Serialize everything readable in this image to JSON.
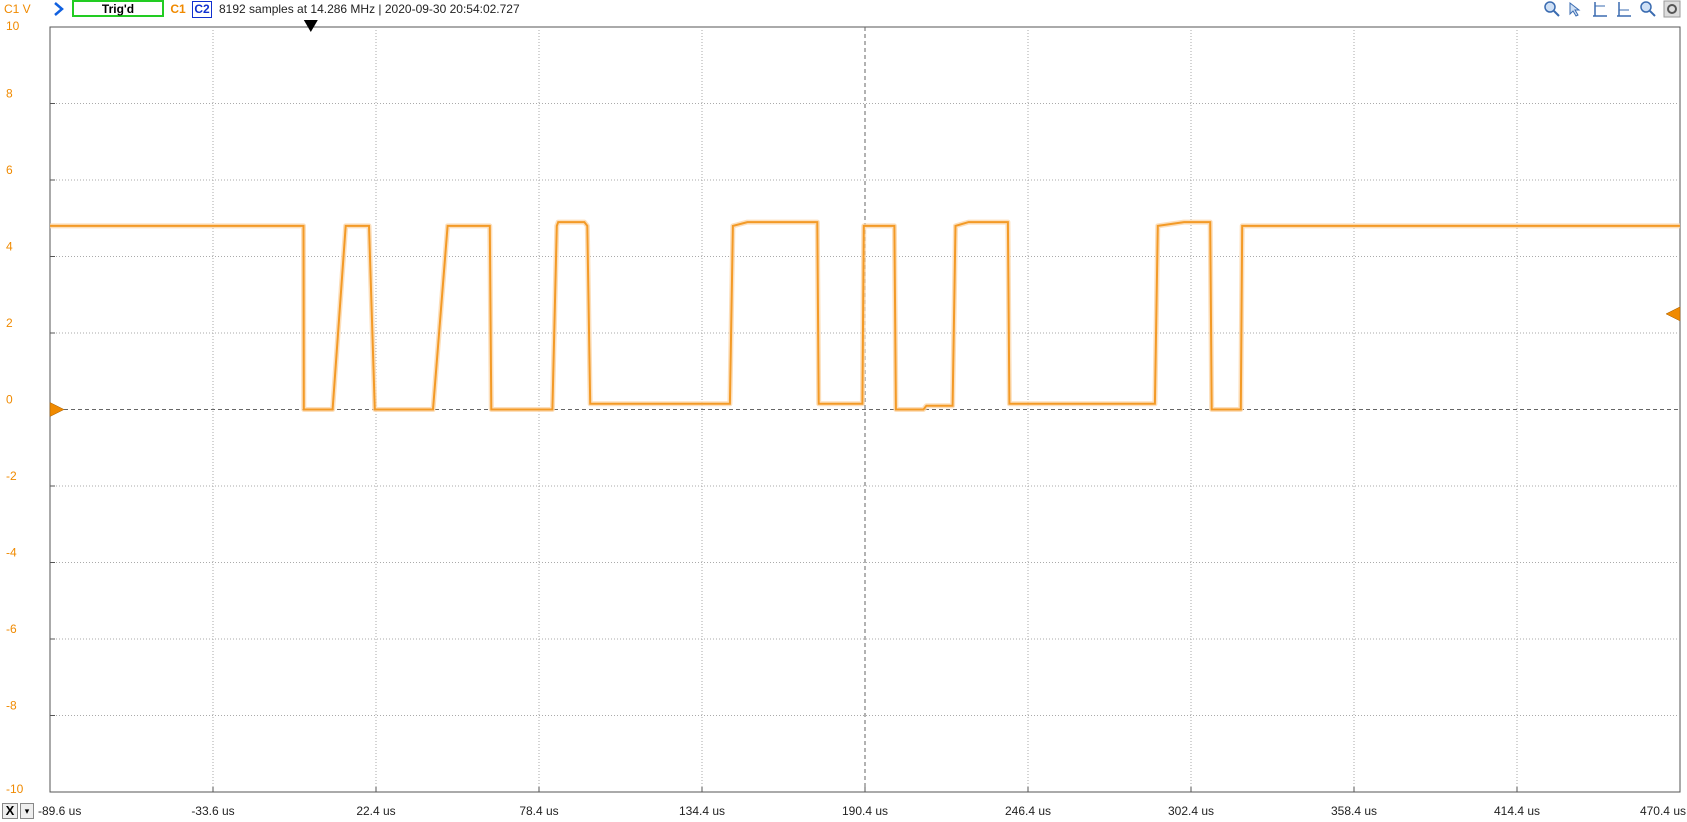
{
  "toolbar": {
    "channel_scale_label": "C1 V",
    "trigger_status": "Trig'd",
    "channel1": "C1",
    "channel2": "C2",
    "acquisition_info": "8192 samples at 14.286 MHz | 2020-09-30 20:54:02.727",
    "tools": [
      "zoom-in-icon",
      "cursor-icon",
      "marker-icon",
      "marker-icon",
      "zoom-out-icon",
      "settings-icon"
    ]
  },
  "bottom": {
    "x_button": "X",
    "dropdown": "▾"
  },
  "colors": {
    "trace": "#f39a26",
    "trace_shadow": "#fbd7ab",
    "accent_c1": "#f08a00",
    "accent_c2": "#1030d0",
    "trig_border": "#22cc22"
  },
  "chart_data": {
    "type": "line",
    "xlabel_unit": "us",
    "ylabel": "C1 V",
    "xlim": [
      -89.6,
      470.4
    ],
    "ylim": [
      -10,
      10
    ],
    "x_ticks": [
      "-89.6 us",
      "-33.6 us",
      "22.4 us",
      "78.4 us",
      "134.4 us",
      "190.4 us",
      "246.4 us",
      "302.4 us",
      "358.4 us",
      "414.4 us",
      "470.4 us"
    ],
    "y_ticks": [
      "10",
      "8",
      "6",
      "4",
      "2",
      "0",
      "-2",
      "-4",
      "-6",
      "-8",
      "-10"
    ],
    "grid": true,
    "series": [
      {
        "x": [
          -89.6,
          -2.5,
          -2.4,
          7.5,
          12.0,
          18.0,
          20.0,
          22.0,
          42.0,
          47.0,
          51.0,
          52.0,
          61.5,
          62.0,
          83.0,
          84.5,
          85.0,
          94.0,
          95.0,
          96.0,
          144.0,
          145.0,
          150.0,
          151.0,
          174.0,
          174.5,
          189.5,
          190.0,
          200.5,
          201.0,
          210.5,
          211.5,
          220.5,
          221.5,
          226.0,
          239.5,
          240.0,
          290.0,
          291.0,
          300.0,
          301.0,
          301.5,
          309.0,
          309.5,
          319.5,
          320.0,
          470.4
        ],
        "y": [
          4.8,
          4.8,
          0.0,
          0.0,
          4.8,
          4.8,
          4.8,
          0.0,
          0.0,
          4.8,
          4.8,
          4.8,
          4.8,
          0.0,
          0.0,
          4.8,
          4.9,
          4.9,
          4.8,
          0.15,
          0.15,
          4.8,
          4.9,
          4.9,
          4.9,
          0.15,
          0.15,
          4.8,
          4.8,
          0.0,
          0.0,
          0.1,
          0.1,
          4.8,
          4.9,
          4.9,
          0.15,
          0.15,
          4.8,
          4.9,
          4.9,
          4.9,
          4.9,
          0.0,
          0.0,
          4.8,
          4.8
        ]
      }
    ],
    "markers": {
      "trigger_time": 0,
      "offset_level": 0,
      "trigger_level": 2.5
    }
  }
}
